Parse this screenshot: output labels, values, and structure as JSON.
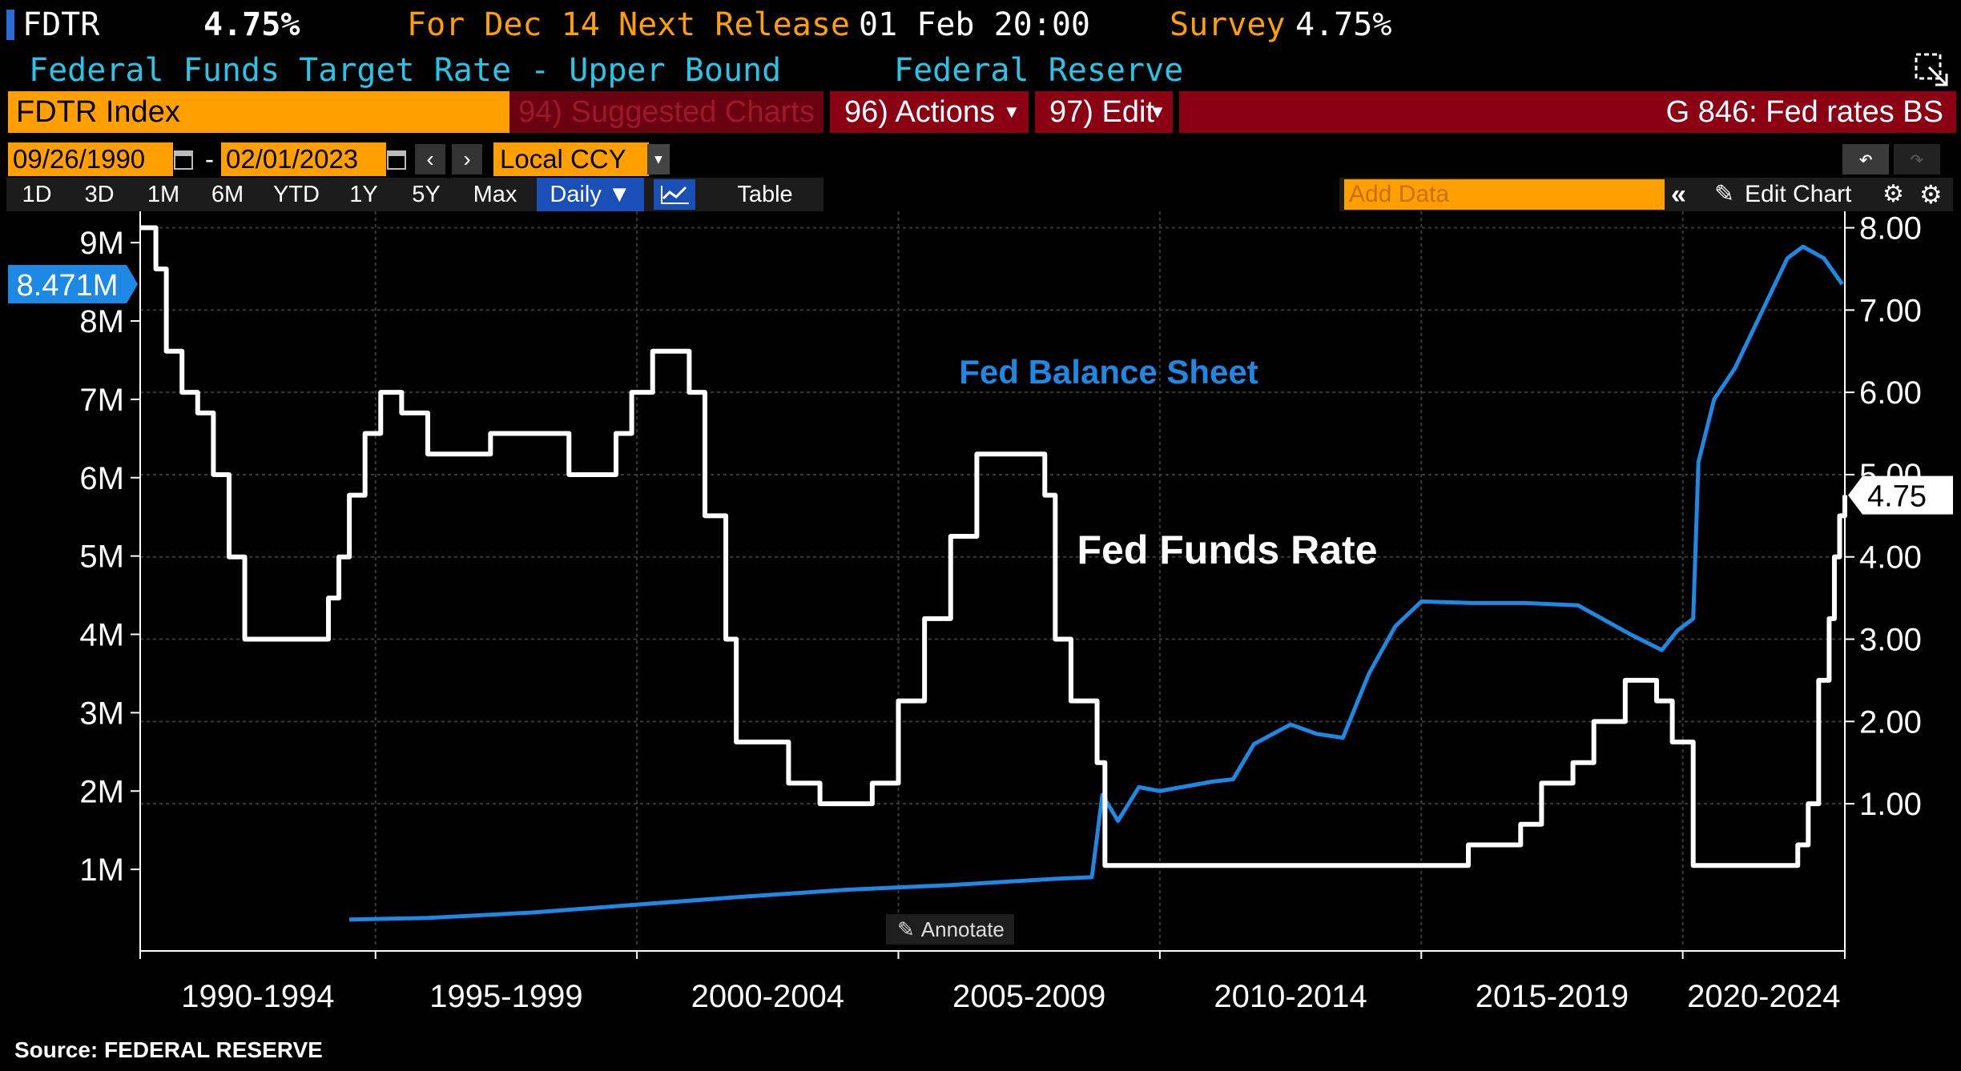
{
  "header": {
    "ticker": "FDTR",
    "last_value": "4.75%",
    "for_label": "For Dec 14",
    "next_release_label": "Next Release",
    "next_release_value": "01 Feb 20:00",
    "survey_label": "Survey",
    "survey_value": "4.75%",
    "description": "Federal Funds Target Rate - Upper Bound",
    "source_name": "Federal Reserve"
  },
  "toolbar": {
    "security": "FDTR Index",
    "suggested": "94) Suggested Charts",
    "actions": "96) Actions",
    "edit": "97) Edit",
    "chart_name": "G 846: Fed rates BS",
    "start_date": "09/26/1990",
    "end_date": "02/01/2023",
    "currency": "Local CCY",
    "periods": [
      "1D",
      "3D",
      "1M",
      "6M",
      "YTD",
      "1Y",
      "5Y",
      "Max"
    ],
    "frequency": "Daily ▼",
    "table": "Table",
    "add_data_placeholder": "Add Data",
    "edit_chart": "Edit Chart"
  },
  "annotate_label": "Annotate",
  "source_note": "Source: FEDERAL RESERVE",
  "colors": {
    "orange": "#ffa000",
    "darkred": "#8b0012",
    "blue": "#1e88e5",
    "cyan": "#27c6e8",
    "white": "#ffffff"
  },
  "chart_data": {
    "type": "line",
    "x_tick_labels": [
      "1990-1994",
      "1995-1999",
      "2000-2004",
      "2005-2009",
      "2010-2014",
      "2015-2019",
      "2020-2024"
    ],
    "x_range": [
      1990.5,
      2023.1
    ],
    "left_axis": {
      "ticks": [
        "1M",
        "2M",
        "3M",
        "4M",
        "5M",
        "6M",
        "7M",
        "8M",
        "9M"
      ],
      "ylim": [
        0,
        9400000
      ],
      "last_label": "8.471M"
    },
    "right_axis": {
      "ticks": [
        "1.00",
        "2.00",
        "3.00",
        "4.00",
        "5.00",
        "6.00",
        "7.00",
        "8.00"
      ],
      "ylim": [
        -0.75,
        8.2
      ],
      "last_label": "4.75"
    },
    "series": [
      {
        "name": "Fed Balance Sheet",
        "axis": "left",
        "color": "#1e88e5",
        "points": [
          [
            1994.5,
            0.36
          ],
          [
            1996.0,
            0.38
          ],
          [
            1998.0,
            0.45
          ],
          [
            2000.0,
            0.55
          ],
          [
            2002.0,
            0.65
          ],
          [
            2004.0,
            0.74
          ],
          [
            2006.0,
            0.8
          ],
          [
            2008.0,
            0.88
          ],
          [
            2008.7,
            0.9
          ],
          [
            2008.9,
            1.95
          ],
          [
            2009.2,
            1.62
          ],
          [
            2009.6,
            2.05
          ],
          [
            2010.0,
            2.0
          ],
          [
            2011.0,
            2.12
          ],
          [
            2011.4,
            2.15
          ],
          [
            2011.8,
            2.6
          ],
          [
            2012.5,
            2.85
          ],
          [
            2013.0,
            2.73
          ],
          [
            2013.5,
            2.68
          ],
          [
            2014.0,
            3.5
          ],
          [
            2014.5,
            4.1
          ],
          [
            2015.0,
            4.42
          ],
          [
            2016.0,
            4.4
          ],
          [
            2017.0,
            4.4
          ],
          [
            2018.0,
            4.37
          ],
          [
            2019.0,
            4.0
          ],
          [
            2019.6,
            3.8
          ],
          [
            2019.9,
            4.05
          ],
          [
            2020.2,
            4.2
          ],
          [
            2020.3,
            6.2
          ],
          [
            2020.6,
            7.0
          ],
          [
            2021.0,
            7.4
          ],
          [
            2021.5,
            8.1
          ],
          [
            2022.0,
            8.8
          ],
          [
            2022.3,
            8.95
          ],
          [
            2022.7,
            8.8
          ],
          [
            2023.05,
            8.47
          ]
        ]
      },
      {
        "name": "Fed Funds Rate",
        "axis": "right",
        "color": "#ffffff",
        "points": [
          [
            1990.5,
            8.0
          ],
          [
            1990.8,
            7.5
          ],
          [
            1991.0,
            6.5
          ],
          [
            1991.3,
            6.0
          ],
          [
            1991.6,
            5.75
          ],
          [
            1991.9,
            5.0
          ],
          [
            1992.2,
            4.0
          ],
          [
            1992.5,
            3.0
          ],
          [
            1993.0,
            3.0
          ],
          [
            1994.0,
            3.0
          ],
          [
            1994.1,
            3.5
          ],
          [
            1994.3,
            4.0
          ],
          [
            1994.5,
            4.75
          ],
          [
            1994.8,
            5.5
          ],
          [
            1995.1,
            6.0
          ],
          [
            1995.5,
            5.75
          ],
          [
            1996.0,
            5.25
          ],
          [
            1997.2,
            5.5
          ],
          [
            1998.7,
            5.0
          ],
          [
            1999.4,
            5.0
          ],
          [
            1999.6,
            5.5
          ],
          [
            1999.9,
            6.0
          ],
          [
            2000.3,
            6.5
          ],
          [
            2001.0,
            6.0
          ],
          [
            2001.3,
            4.5
          ],
          [
            2001.7,
            3.0
          ],
          [
            2001.9,
            1.75
          ],
          [
            2002.9,
            1.25
          ],
          [
            2003.5,
            1.0
          ],
          [
            2004.5,
            1.25
          ],
          [
            2005.0,
            2.25
          ],
          [
            2005.5,
            3.25
          ],
          [
            2006.0,
            4.25
          ],
          [
            2006.5,
            5.25
          ],
          [
            2007.6,
            5.25
          ],
          [
            2007.8,
            4.75
          ],
          [
            2008.0,
            3.0
          ],
          [
            2008.3,
            2.25
          ],
          [
            2008.8,
            1.5
          ],
          [
            2008.95,
            0.25
          ],
          [
            2015.9,
            0.5
          ],
          [
            2016.9,
            0.75
          ],
          [
            2017.3,
            1.25
          ],
          [
            2017.9,
            1.5
          ],
          [
            2018.3,
            2.0
          ],
          [
            2018.9,
            2.5
          ],
          [
            2019.5,
            2.25
          ],
          [
            2019.8,
            1.75
          ],
          [
            2020.2,
            0.25
          ],
          [
            2022.2,
            0.5
          ],
          [
            2022.4,
            1.0
          ],
          [
            2022.6,
            2.5
          ],
          [
            2022.8,
            3.25
          ],
          [
            2022.9,
            4.0
          ],
          [
            2023.0,
            4.5
          ],
          [
            2023.1,
            4.75
          ]
        ]
      }
    ],
    "annotations": [
      "Fed Balance Sheet",
      "Fed Funds Rate"
    ],
    "grid": "on"
  }
}
